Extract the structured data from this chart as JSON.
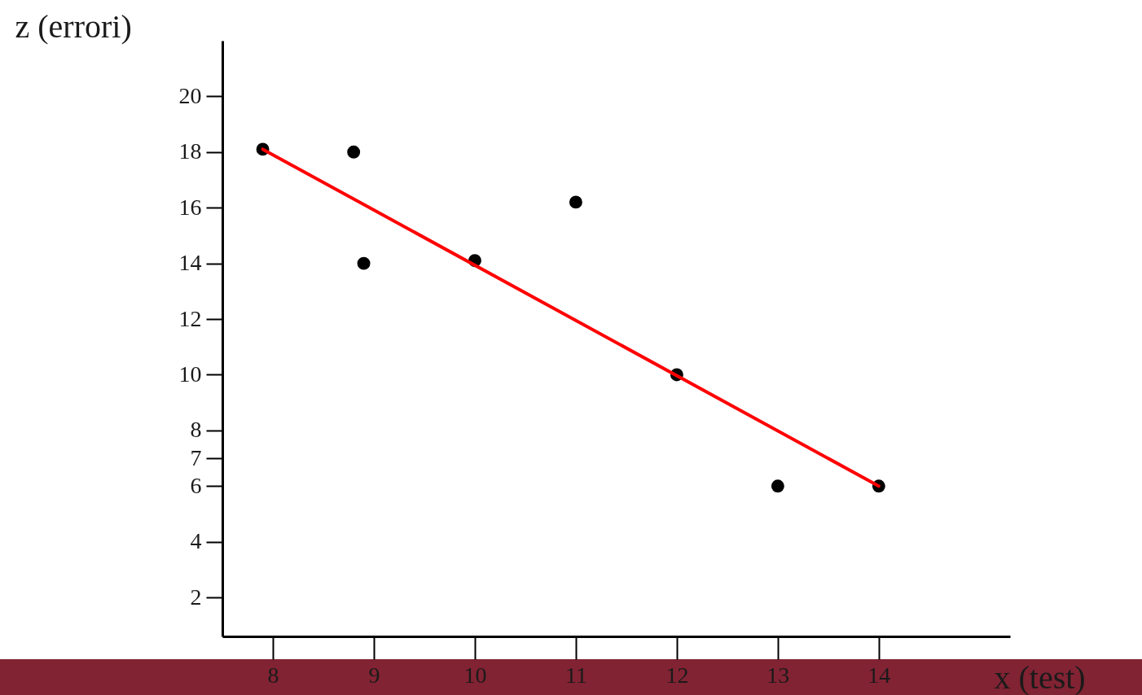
{
  "chart_data": {
    "type": "scatter",
    "xlabel": "x (test)",
    "ylabel": "z (errori)",
    "x": [
      7.9,
      8.8,
      8.9,
      10,
      11,
      12,
      13,
      14
    ],
    "series": [
      {
        "color": "#000000",
        "values": [
          18.1,
          18,
          14,
          14.1,
          16.2,
          10,
          6,
          6
        ]
      },
      {
        "type": "line",
        "marker": "none",
        "color": "#ff0000",
        "x": [
          7.9,
          14
        ],
        "values": [
          18.1,
          6
        ]
      }
    ],
    "xlim": [
      7.5,
      15.3
    ],
    "ylim": [
      0.6,
      22
    ],
    "xticks": [
      8,
      9,
      10,
      11,
      12,
      13,
      14
    ],
    "yticks": [
      2,
      4,
      6,
      7,
      8,
      10,
      12,
      14,
      16,
      18,
      20
    ],
    "grid": false,
    "legend": false,
    "marker": "circle",
    "line_style": "solid"
  }
}
